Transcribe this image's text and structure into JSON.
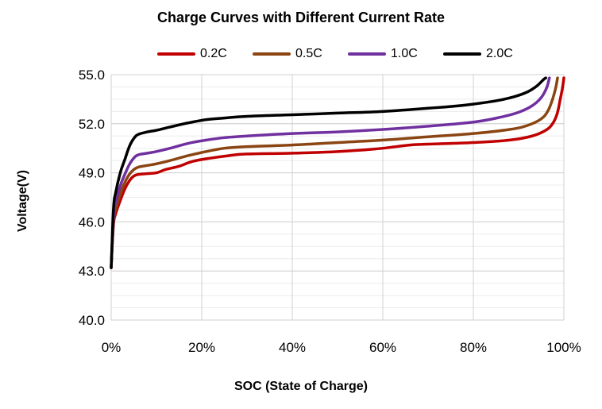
{
  "chart_data": {
    "type": "line",
    "title": "Charge Curves with Different Current Rate",
    "xlabel": "SOC (State of Charge)",
    "ylabel": "Voltage(V)",
    "xlim": [
      0,
      100
    ],
    "ylim": [
      40,
      55
    ],
    "x_ticks": [
      "0%",
      "20%",
      "40%",
      "60%",
      "80%",
      "100%"
    ],
    "y_ticks": [
      "40.0",
      "43.0",
      "46.0",
      "49.0",
      "52.0",
      "55.0"
    ],
    "grid": true,
    "legend_position": "top",
    "series": [
      {
        "name": "0.2C",
        "color": "#C00000",
        "points": [
          [
            0,
            43.2
          ],
          [
            0.5,
            45.8
          ],
          [
            1,
            46.5
          ],
          [
            2,
            47.3
          ],
          [
            3,
            48.0
          ],
          [
            4,
            48.5
          ],
          [
            5,
            48.8
          ],
          [
            6,
            48.9
          ],
          [
            8,
            48.95
          ],
          [
            10,
            49.0
          ],
          [
            12,
            49.2
          ],
          [
            15,
            49.4
          ],
          [
            18,
            49.7
          ],
          [
            22,
            49.9
          ],
          [
            26,
            50.05
          ],
          [
            30,
            50.15
          ],
          [
            40,
            50.2
          ],
          [
            50,
            50.3
          ],
          [
            58,
            50.45
          ],
          [
            63,
            50.6
          ],
          [
            66,
            50.7
          ],
          [
            70,
            50.75
          ],
          [
            80,
            50.85
          ],
          [
            88,
            51.0
          ],
          [
            93,
            51.25
          ],
          [
            96,
            51.6
          ],
          [
            97.5,
            52.0
          ],
          [
            98.5,
            52.6
          ],
          [
            99.2,
            53.5
          ],
          [
            99.7,
            54.2
          ],
          [
            100,
            54.8
          ]
        ]
      },
      {
        "name": "0.5C",
        "color": "#8B4513",
        "points": [
          [
            0,
            43.2
          ],
          [
            0.5,
            46.0
          ],
          [
            1,
            46.8
          ],
          [
            2,
            47.7
          ],
          [
            3,
            48.4
          ],
          [
            4,
            48.9
          ],
          [
            5,
            49.2
          ],
          [
            6,
            49.35
          ],
          [
            8,
            49.45
          ],
          [
            10,
            49.55
          ],
          [
            13,
            49.75
          ],
          [
            17,
            50.05
          ],
          [
            21,
            50.3
          ],
          [
            25,
            50.5
          ],
          [
            30,
            50.6
          ],
          [
            40,
            50.7
          ],
          [
            50,
            50.85
          ],
          [
            60,
            51.0
          ],
          [
            70,
            51.2
          ],
          [
            80,
            51.4
          ],
          [
            88,
            51.65
          ],
          [
            92,
            51.9
          ],
          [
            95,
            52.3
          ],
          [
            96.5,
            52.8
          ],
          [
            97.5,
            53.5
          ],
          [
            98.2,
            54.2
          ],
          [
            98.6,
            54.8
          ]
        ]
      },
      {
        "name": "1.0C",
        "color": "#7030A0",
        "points": [
          [
            0,
            43.2
          ],
          [
            0.5,
            46.3
          ],
          [
            1,
            47.2
          ],
          [
            2,
            48.2
          ],
          [
            3,
            48.9
          ],
          [
            4,
            49.5
          ],
          [
            5,
            49.9
          ],
          [
            6,
            50.1
          ],
          [
            8,
            50.2
          ],
          [
            10,
            50.3
          ],
          [
            13,
            50.5
          ],
          [
            17,
            50.8
          ],
          [
            21,
            51.0
          ],
          [
            25,
            51.15
          ],
          [
            30,
            51.25
          ],
          [
            40,
            51.4
          ],
          [
            50,
            51.5
          ],
          [
            60,
            51.65
          ],
          [
            70,
            51.85
          ],
          [
            80,
            52.1
          ],
          [
            86,
            52.4
          ],
          [
            90,
            52.7
          ],
          [
            93,
            53.1
          ],
          [
            95,
            53.6
          ],
          [
            96.2,
            54.2
          ],
          [
            96.8,
            54.8
          ]
        ]
      },
      {
        "name": "2.0C",
        "color": "#000000",
        "points": [
          [
            0,
            43.2
          ],
          [
            0.5,
            46.8
          ],
          [
            1,
            47.8
          ],
          [
            2,
            49.0
          ],
          [
            3,
            49.8
          ],
          [
            4,
            50.6
          ],
          [
            5,
            51.1
          ],
          [
            6,
            51.35
          ],
          [
            8,
            51.5
          ],
          [
            10,
            51.6
          ],
          [
            13,
            51.8
          ],
          [
            17,
            52.05
          ],
          [
            21,
            52.25
          ],
          [
            25,
            52.35
          ],
          [
            30,
            52.45
          ],
          [
            40,
            52.55
          ],
          [
            50,
            52.65
          ],
          [
            60,
            52.75
          ],
          [
            70,
            52.95
          ],
          [
            75,
            53.05
          ],
          [
            80,
            53.2
          ],
          [
            85,
            53.4
          ],
          [
            89,
            53.65
          ],
          [
            92,
            53.95
          ],
          [
            94,
            54.3
          ],
          [
            95.5,
            54.7
          ],
          [
            96,
            54.8
          ]
        ]
      }
    ]
  }
}
